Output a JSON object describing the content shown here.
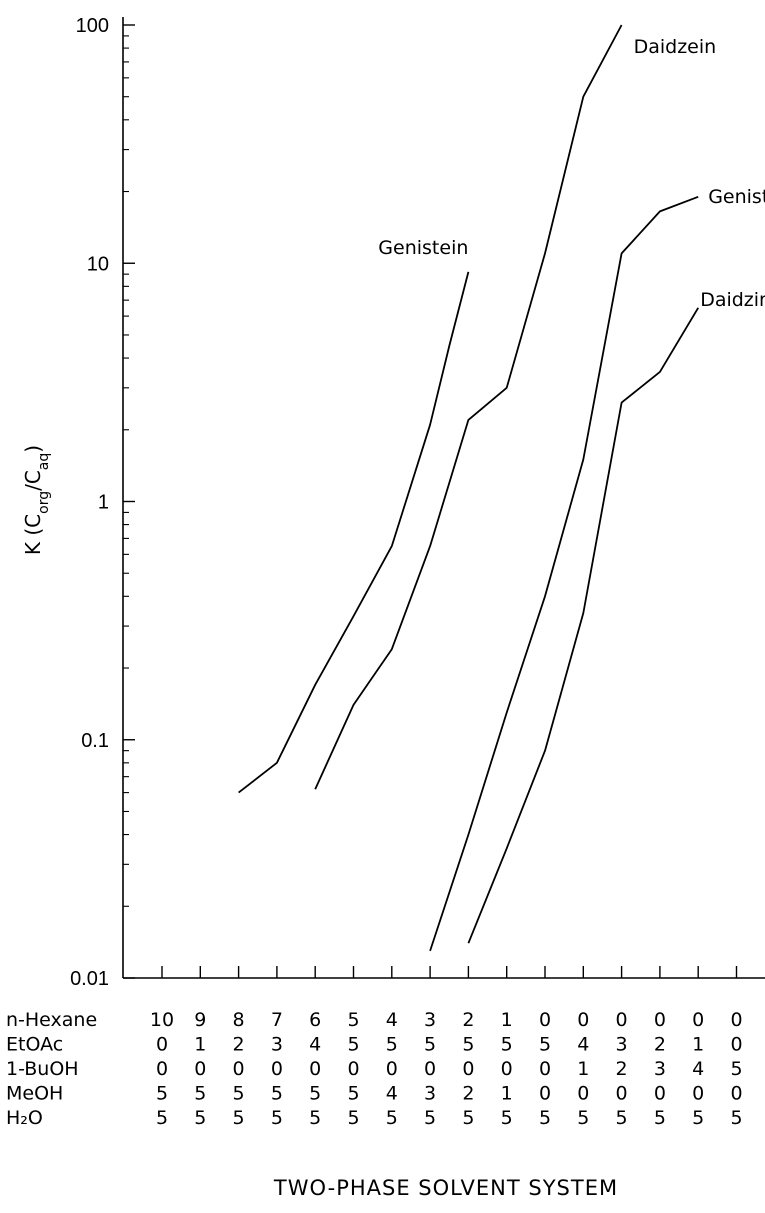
{
  "chart_data": {
    "type": "line",
    "title": "",
    "xlabel": "TWO-PHASE SOLVENT SYSTEM",
    "ylabel": {
      "prefix": "K (C",
      "sub1": "org",
      "mid": "/C",
      "sub2": "aq",
      "suffix": ")"
    },
    "yscale": "log",
    "ylim": [
      0.01,
      100
    ],
    "yticks": [
      {
        "value": 0.01,
        "label": "0.01"
      },
      {
        "value": 0.1,
        "label": "0.1"
      },
      {
        "value": 1,
        "label": "1"
      },
      {
        "value": 10,
        "label": "10"
      },
      {
        "value": 100,
        "label": "100"
      }
    ],
    "x_count": 16,
    "solvent_table": [
      {
        "name": "n-Hexane",
        "values": [
          "10",
          "9",
          "8",
          "7",
          "6",
          "5",
          "4",
          "3",
          "2",
          "1",
          "0",
          "0",
          "0",
          "0",
          "0",
          "0"
        ]
      },
      {
        "name": "EtOAc",
        "values": [
          "0",
          "1",
          "2",
          "3",
          "4",
          "5",
          "5",
          "5",
          "5",
          "5",
          "5",
          "4",
          "3",
          "2",
          "1",
          "0"
        ]
      },
      {
        "name": "1-BuOH",
        "values": [
          "0",
          "0",
          "0",
          "0",
          "0",
          "0",
          "0",
          "0",
          "0",
          "0",
          "0",
          "1",
          "2",
          "3",
          "4",
          "5"
        ]
      },
      {
        "name": "MeOH",
        "values": [
          "5",
          "5",
          "5",
          "5",
          "5",
          "5",
          "4",
          "3",
          "2",
          "1",
          "0",
          "0",
          "0",
          "0",
          "0",
          "0"
        ]
      },
      {
        "name": "H₂O",
        "values": [
          "5",
          "5",
          "5",
          "5",
          "5",
          "5",
          "5",
          "5",
          "5",
          "5",
          "5",
          "5",
          "5",
          "5",
          "5",
          "5"
        ]
      }
    ],
    "series": [
      {
        "name": "Genistein",
        "label_anchor": 8,
        "points": [
          [
            2,
            0.06
          ],
          [
            3,
            0.08
          ],
          [
            4,
            0.17
          ],
          [
            5,
            0.33
          ],
          [
            6,
            0.65
          ],
          [
            7,
            2.1
          ],
          [
            7.5,
            4.5
          ],
          [
            8,
            9.2
          ]
        ]
      },
      {
        "name": "Daidzein",
        "label_anchor": 12,
        "points": [
          [
            4,
            0.062
          ],
          [
            5,
            0.14
          ],
          [
            6,
            0.24
          ],
          [
            7,
            0.65
          ],
          [
            8,
            2.2
          ],
          [
            9,
            3.0
          ],
          [
            10,
            11
          ],
          [
            11,
            50
          ],
          [
            12,
            100
          ]
        ]
      },
      {
        "name": "Genistin",
        "label_anchor": 14,
        "points": [
          [
            7,
            0.013
          ],
          [
            8,
            0.04
          ],
          [
            9,
            0.13
          ],
          [
            10,
            0.4
          ],
          [
            11,
            1.5
          ],
          [
            12,
            11
          ],
          [
            13,
            16.5
          ],
          [
            14,
            19
          ]
        ]
      },
      {
        "name": "Daidzin",
        "label_anchor": 14,
        "points": [
          [
            8,
            0.014
          ],
          [
            9,
            0.035
          ],
          [
            10,
            0.09
          ],
          [
            11,
            0.34
          ],
          [
            12,
            2.6
          ],
          [
            13,
            3.5
          ],
          [
            14,
            6.5
          ]
        ]
      }
    ]
  }
}
